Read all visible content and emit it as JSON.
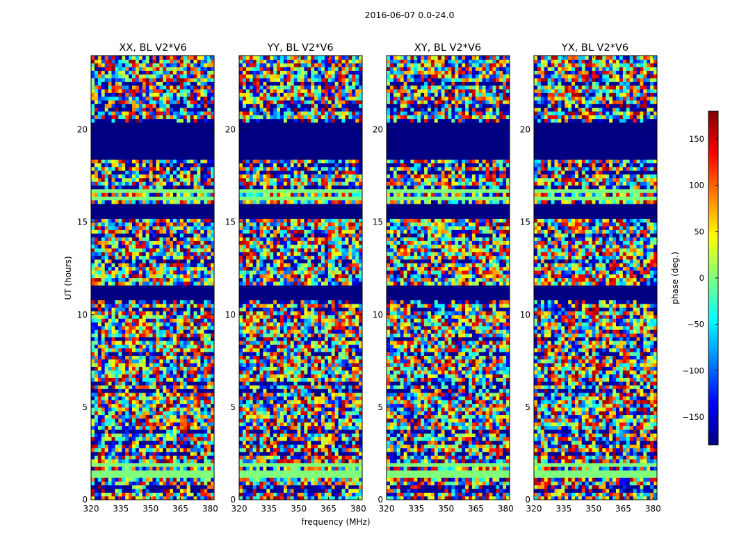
{
  "figure": {
    "suptitle": "2016-06-07 0.0-24.0",
    "xlabel": "frequency (MHz)",
    "ylabel": "UT (hours)"
  },
  "chart_data": {
    "type": "heatmap",
    "title": "2016-06-07 0.0-24.0",
    "xlabel": "frequency (MHz)",
    "ylabel": "UT (hours)",
    "xlim": [
      320,
      382
    ],
    "ylim": [
      0,
      24
    ],
    "xticks": [
      320,
      335,
      350,
      365,
      380
    ],
    "yticks": [
      0,
      5,
      10,
      15,
      20
    ],
    "panels": [
      {
        "title": "XX, BL V2*V6",
        "polarization": "XX"
      },
      {
        "title": "YY, BL V2*V6",
        "polarization": "YY"
      },
      {
        "title": "XY, BL V2*V6",
        "polarization": "XY"
      },
      {
        "title": "YX, BL V2*V6",
        "polarization": "YX"
      }
    ],
    "colorbar": {
      "label": "phase (deg.)",
      "range": [
        -180,
        180
      ],
      "ticks": [
        -150,
        -100,
        -50,
        0,
        50,
        100,
        150
      ],
      "tick_labels": [
        "−150",
        "−100",
        "−50",
        "0",
        "50",
        "100",
        "150"
      ],
      "colormap": "jet"
    },
    "flagged_bands_ut": [
      [
        18.4,
        20.3
      ],
      [
        15.2,
        16.0
      ],
      [
        10.9,
        11.6
      ]
    ],
    "zero_phase_bands_ut": [
      [
        1.3,
        1.6
      ],
      [
        1.8,
        2.0
      ],
      [
        16.2,
        16.4
      ],
      [
        16.6,
        16.8
      ]
    ]
  },
  "colors": {
    "flagged": "#000080",
    "zero_phase": "#80ff7c",
    "frame": "#000000"
  }
}
